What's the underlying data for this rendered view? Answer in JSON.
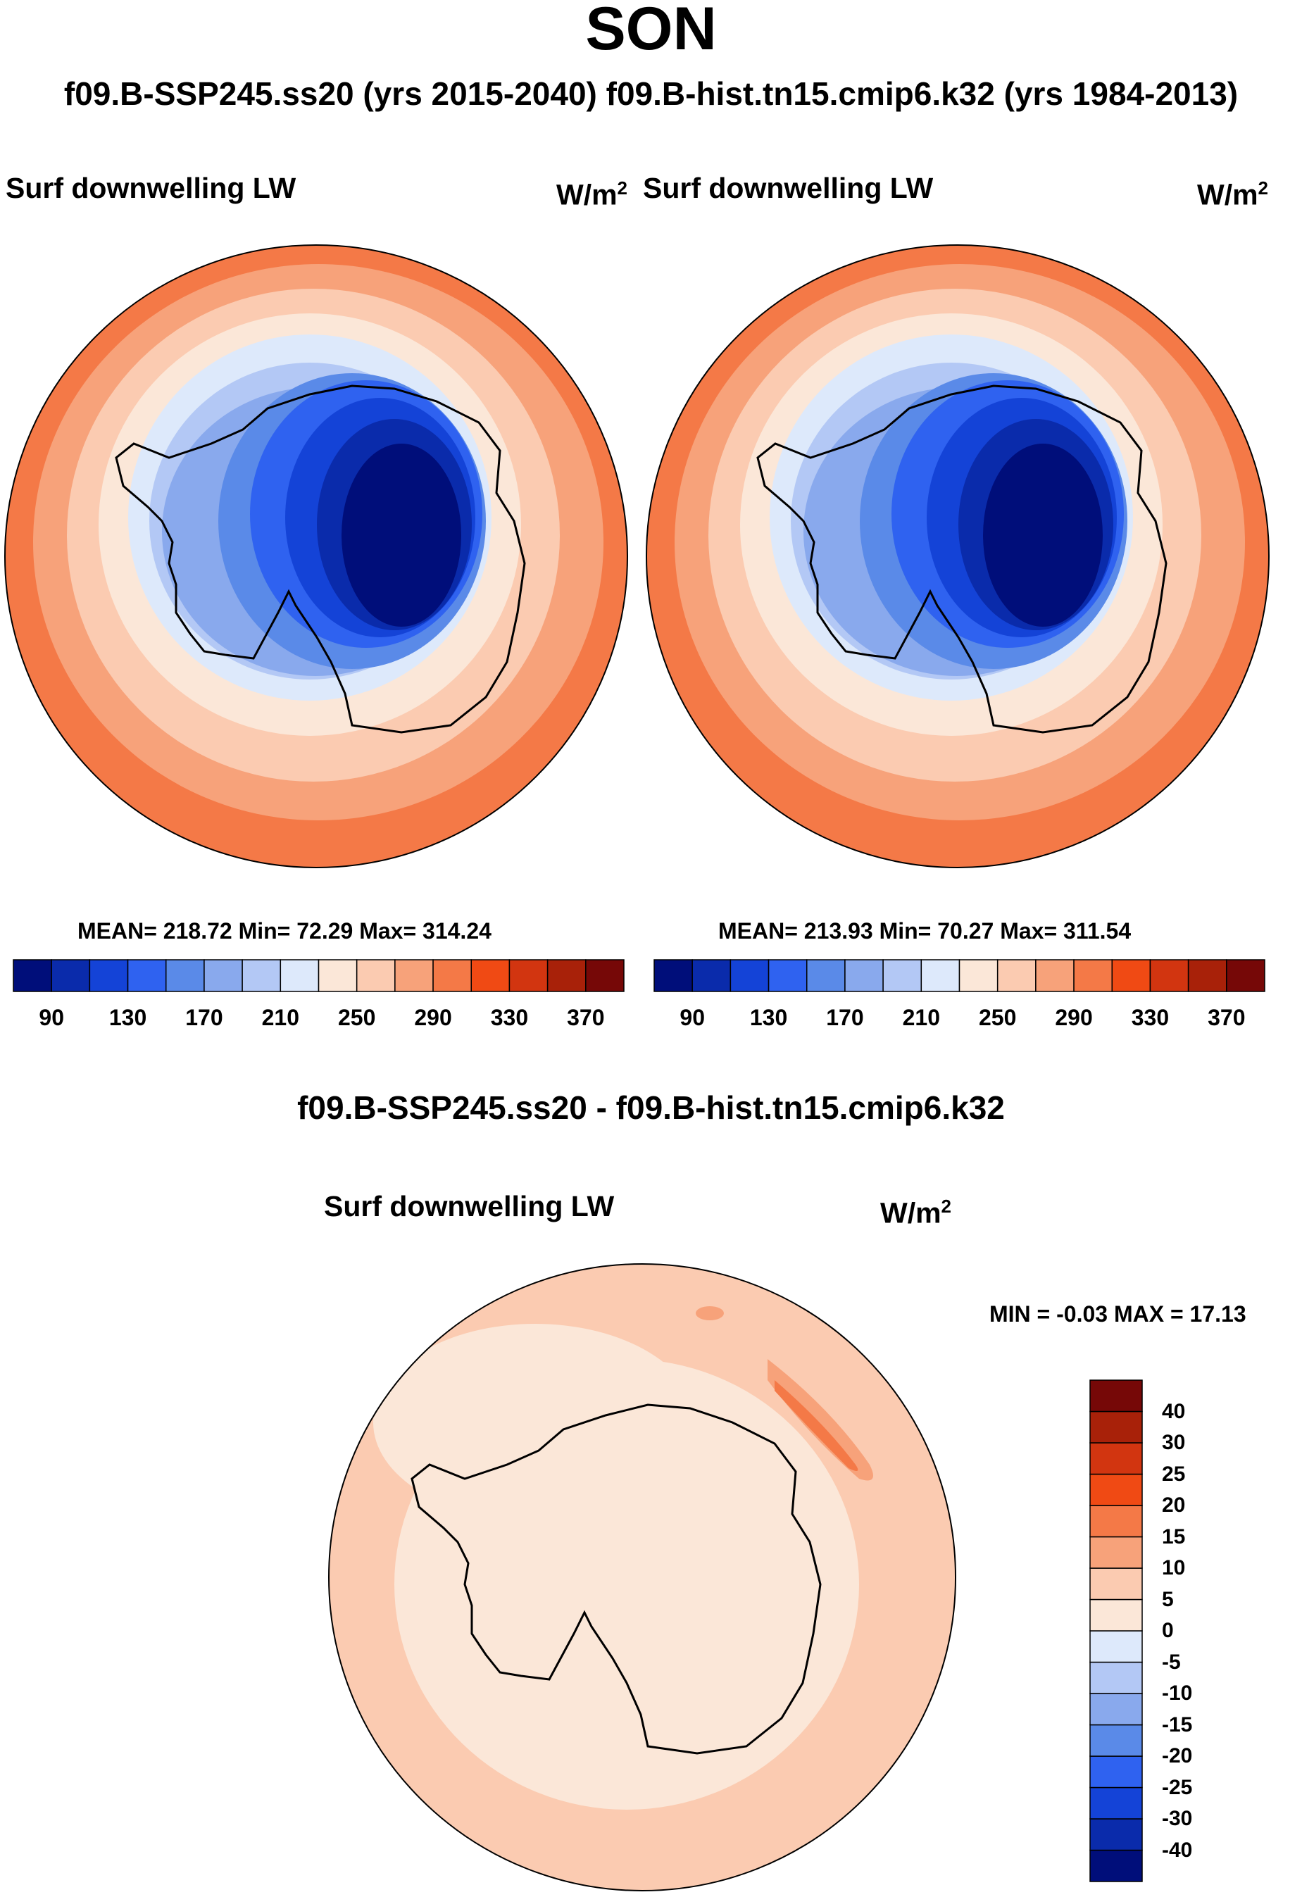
{
  "figure": {
    "title": "SON",
    "subtitle": "f09.B-SSP245.ss20 (yrs 2015-2040)  f09.B-hist.tn15.cmip6.k32 (yrs 1984-2013)",
    "diff_title": "f09.B-SSP245.ss20 - f09.B-hist.tn15.cmip6.k32"
  },
  "panels": {
    "left": {
      "var": "Surf downwelling LW",
      "units": "W/m",
      "units_exp": "2",
      "stats": "MEAN= 218.72  Min=  72.29  Max= 314.24"
    },
    "right": {
      "var": "Surf downwelling LW",
      "units": "W/m",
      "units_exp": "2",
      "stats": "MEAN= 213.93  Min=  70.27  Max= 311.54"
    },
    "diff": {
      "var": "Surf downwelling LW",
      "units": "W/m",
      "units_exp": "2",
      "stats": "MIN =  -0.03 MAX =  17.13"
    }
  },
  "colors": {
    "abs_palette": [
      "#000e7a",
      "#0a2bab",
      "#1443d7",
      "#2f62f0",
      "#5a8ae8",
      "#89a9ed",
      "#b3c8f5",
      "#dde9fb",
      "#fbe7d8",
      "#fbcbb1",
      "#f7a27a",
      "#f47947",
      "#f04a14",
      "#d23510",
      "#a82109",
      "#760807"
    ],
    "diff_palette": [
      "#000e7a",
      "#0a2bab",
      "#1443d7",
      "#2f62f0",
      "#5a8ae8",
      "#89a9ed",
      "#b3c8f5",
      "#dde9fb",
      "#fbe7d8",
      "#fbcbb1",
      "#f7a27a",
      "#f47947",
      "#f04a14",
      "#d23510",
      "#a82109",
      "#760807"
    ]
  },
  "chart_data": [
    {
      "type": "heatmap",
      "title": "Surf downwelling LW",
      "units": "W/m2",
      "projection": "south-polar-stereographic",
      "run": "f09.B-SSP245.ss20 (yrs 2015-2040)",
      "mean": 218.72,
      "min": 72.29,
      "max": 314.24,
      "colorbar_levels": [
        90,
        110,
        130,
        150,
        170,
        190,
        210,
        230,
        250,
        270,
        290,
        310,
        330,
        350,
        370
      ],
      "colorbar_tick_labels": [
        "90",
        "130",
        "170",
        "210",
        "250",
        "290",
        "330",
        "370"
      ]
    },
    {
      "type": "heatmap",
      "title": "Surf downwelling LW",
      "units": "W/m2",
      "projection": "south-polar-stereographic",
      "run": "f09.B-hist.tn15.cmip6.k32 (yrs 1984-2013)",
      "mean": 213.93,
      "min": 70.27,
      "max": 311.54,
      "colorbar_levels": [
        90,
        110,
        130,
        150,
        170,
        190,
        210,
        230,
        250,
        270,
        290,
        310,
        330,
        350,
        370
      ],
      "colorbar_tick_labels": [
        "90",
        "130",
        "170",
        "210",
        "250",
        "290",
        "330",
        "370"
      ]
    },
    {
      "type": "heatmap",
      "title": "Surf downwelling LW",
      "units": "W/m2",
      "projection": "south-polar-stereographic",
      "run": "f09.B-SSP245.ss20 - f09.B-hist.tn15.cmip6.k32",
      "min": -0.03,
      "max": 17.13,
      "colorbar_levels": [
        -40,
        -30,
        -25,
        -20,
        -15,
        -10,
        -5,
        0,
        5,
        10,
        15,
        20,
        25,
        30,
        40
      ],
      "colorbar_tick_labels": [
        "40",
        "30",
        "25",
        "20",
        "15",
        "10",
        "5",
        "0",
        "-5",
        "-10",
        "-15",
        "-20",
        "-25",
        "-30",
        "-40"
      ]
    }
  ]
}
